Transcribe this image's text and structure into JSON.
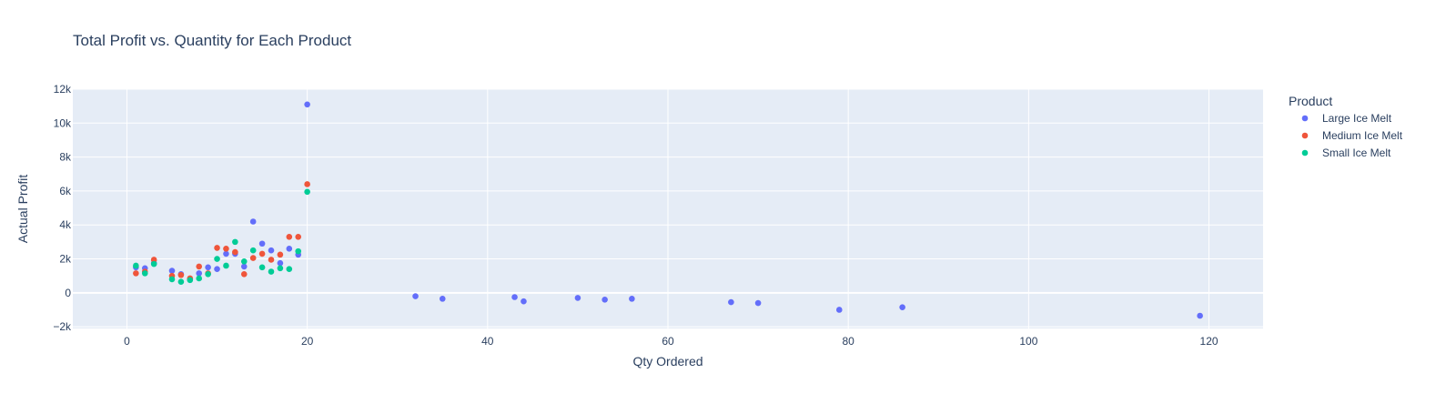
{
  "chart_data": {
    "type": "scatter",
    "title": "Total Profit vs. Quantity for Each Product",
    "xlabel": "Qty Ordered",
    "ylabel": "Actual Profit",
    "xlim": [
      -6,
      126
    ],
    "ylim": [
      -2100,
      12000
    ],
    "x_ticks": [
      0,
      20,
      40,
      60,
      80,
      100,
      120
    ],
    "y_ticks": [
      -2000,
      0,
      2000,
      4000,
      6000,
      8000,
      10000,
      12000
    ],
    "y_tick_labels": [
      "−2k",
      "0",
      "2k",
      "4k",
      "6k",
      "8k",
      "10k",
      "12k"
    ],
    "grid": true,
    "legend_title": "Product",
    "legend_position": "right",
    "series": [
      {
        "name": "Large Ice Melt",
        "color": "#636efa",
        "points": [
          [
            1,
            1500
          ],
          [
            2,
            1450
          ],
          [
            3,
            1750
          ],
          [
            5,
            1300
          ],
          [
            6,
            1100
          ],
          [
            7,
            800
          ],
          [
            8,
            1150
          ],
          [
            9,
            1500
          ],
          [
            10,
            1400
          ],
          [
            11,
            2300
          ],
          [
            12,
            2300
          ],
          [
            13,
            1550
          ],
          [
            14,
            4200
          ],
          [
            15,
            2900
          ],
          [
            16,
            2500
          ],
          [
            17,
            1750
          ],
          [
            18,
            2600
          ],
          [
            19,
            2250
          ],
          [
            20,
            11100
          ],
          [
            32,
            -200
          ],
          [
            35,
            -350
          ],
          [
            43,
            -250
          ],
          [
            44,
            -500
          ],
          [
            50,
            -300
          ],
          [
            53,
            -400
          ],
          [
            56,
            -350
          ],
          [
            67,
            -550
          ],
          [
            70,
            -600
          ],
          [
            79,
            -1000
          ],
          [
            86,
            -850
          ],
          [
            119,
            -1350
          ]
        ]
      },
      {
        "name": "Medium Ice Melt",
        "color": "#ef553b",
        "points": [
          [
            1,
            1150
          ],
          [
            2,
            1250
          ],
          [
            3,
            1950
          ],
          [
            5,
            1000
          ],
          [
            6,
            1050
          ],
          [
            7,
            850
          ],
          [
            8,
            1550
          ],
          [
            9,
            1150
          ],
          [
            10,
            2650
          ],
          [
            11,
            2600
          ],
          [
            12,
            2400
          ],
          [
            13,
            1100
          ],
          [
            14,
            2050
          ],
          [
            15,
            2300
          ],
          [
            16,
            1950
          ],
          [
            17,
            2250
          ],
          [
            18,
            3300
          ],
          [
            19,
            3300
          ],
          [
            20,
            6400
          ]
        ]
      },
      {
        "name": "Small Ice Melt",
        "color": "#00cc96",
        "points": [
          [
            1,
            1600
          ],
          [
            2,
            1150
          ],
          [
            3,
            1700
          ],
          [
            5,
            800
          ],
          [
            6,
            650
          ],
          [
            7,
            750
          ],
          [
            8,
            850
          ],
          [
            9,
            1100
          ],
          [
            10,
            2000
          ],
          [
            11,
            1600
          ],
          [
            12,
            3000
          ],
          [
            13,
            1850
          ],
          [
            14,
            2500
          ],
          [
            15,
            1500
          ],
          [
            16,
            1250
          ],
          [
            17,
            1450
          ],
          [
            18,
            1400
          ],
          [
            19,
            2450
          ],
          [
            20,
            5950
          ]
        ]
      }
    ]
  }
}
